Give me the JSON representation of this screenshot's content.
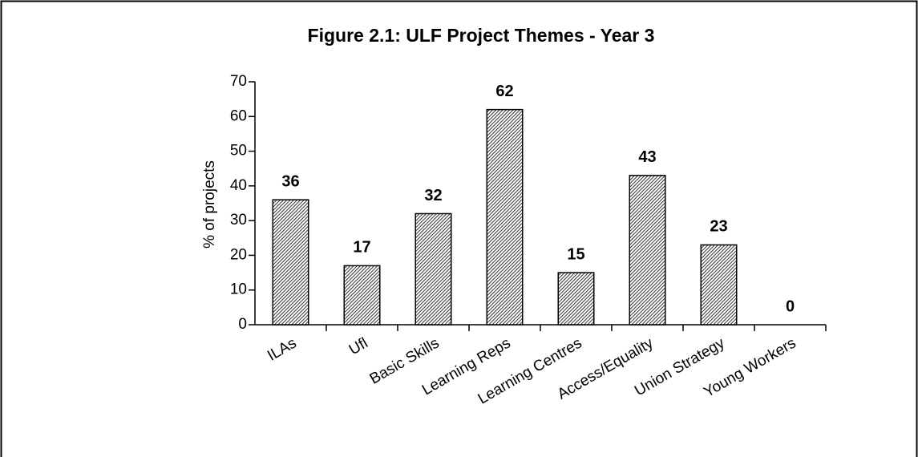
{
  "chart_data": {
    "type": "bar",
    "title": "Figure 2.1: ULF Project Themes - Year 3",
    "y_label": "% of projects",
    "categories": [
      "ILAs",
      "Ufl",
      "Basic Skills",
      "Learning Reps",
      "Learning Centres",
      "Access/Equality",
      "Union Strategy",
      "Young Workers"
    ],
    "values": [
      36,
      17,
      32,
      62,
      15,
      43,
      23,
      0
    ],
    "color": "#000000",
    "ylim": [
      0,
      70
    ],
    "yticks": [
      0,
      10,
      20,
      30,
      40,
      50,
      60,
      70
    ],
    "grid": false
  }
}
